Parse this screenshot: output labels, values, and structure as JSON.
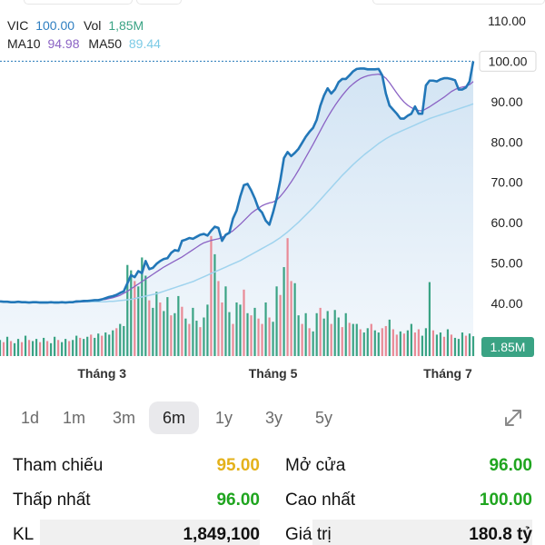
{
  "legend": {
    "symbol": "VIC",
    "price": "100.00",
    "vol_label": "Vol",
    "vol": "1,85M",
    "ma10_label": "MA10",
    "ma10": "94.98",
    "ma50_label": "MA50",
    "ma50": "89.44"
  },
  "colors": {
    "price_line": "#2277b8",
    "area_fill": "#cfe2f3",
    "ma10": "#8b63c4",
    "ma50": "#9fd3ee",
    "vol_up": "#3aa384",
    "vol_down": "#e98a96",
    "green_text": "#1fa51f",
    "yellow_text": "#e4b21b",
    "value_blue": "#2f7fc1",
    "ma50_text": "#7ccbe6"
  },
  "chart_data": {
    "type": "line",
    "title": "",
    "ylim": [
      37,
      110
    ],
    "y_ticks": [
      "110.00",
      "90.00",
      "80.00",
      "70.00",
      "60.00",
      "50.00",
      "40.00"
    ],
    "y_tick_values": [
      110,
      90,
      80,
      70,
      60,
      50,
      40
    ],
    "current_price_label": "100.00",
    "current_price": 100,
    "current_volume_label": "1.85M",
    "x_tick_labels": [
      "Tháng 3",
      "Tháng 5",
      "Tháng 7"
    ],
    "x_tick_index": [
      28,
      75,
      123
    ],
    "grid": false,
    "series": [
      {
        "key": "price",
        "values": [
          40.5,
          40.4,
          40.4,
          40.3,
          40.3,
          40.4,
          40.3,
          40.3,
          40.2,
          40.3,
          40.3,
          40.2,
          40.2,
          40.2,
          40.3,
          40.2,
          40.2,
          40.3,
          40.2,
          40.3,
          40.3,
          40.5,
          40.5,
          40.6,
          40.6,
          40.7,
          40.8,
          40.8,
          41.0,
          41.3,
          41.6,
          41.8,
          42.1,
          42.6,
          43.0,
          45.0,
          47.0,
          46.5,
          48.0,
          47.5,
          50.5,
          48.5,
          48.8,
          49.8,
          50.5,
          51.0,
          51.2,
          52.5,
          53.2,
          53.0,
          55.5,
          55.8,
          56.2,
          56.0,
          56.5,
          57.0,
          57.2,
          56.8,
          58.0,
          59.0,
          58.7,
          55.5,
          57.0,
          57.5,
          61.0,
          63.0,
          66.5,
          69.3,
          69.6,
          68.0,
          66.0,
          63.5,
          62.5,
          60.5,
          59.5,
          62.5,
          66.0,
          70.5,
          76.0,
          77.5,
          76.5,
          77.3,
          78.3,
          79.8,
          81.3,
          82.5,
          83.5,
          85.5,
          89.0,
          91.5,
          93.3,
          92.0,
          93.0,
          94.8,
          95.6,
          95.6,
          96.5,
          97.5,
          98.1,
          98.2,
          98.2,
          98.0,
          98.0,
          98.0,
          98.1,
          96.5,
          92.0,
          89.0,
          88.0,
          87.0,
          85.8,
          85.8,
          86.5,
          87.0,
          88.8,
          87.0,
          87.0,
          94.0,
          95.2,
          95.2,
          95.0,
          95.5,
          95.8,
          95.8,
          95.6,
          95.3,
          93.0,
          93.0,
          93.5,
          95.0,
          100.0
        ],
        "name": ""
      },
      {
        "key": "ma10",
        "values": [
          40.4,
          40.4,
          40.4,
          40.4,
          40.4,
          40.4,
          40.4,
          40.3,
          40.3,
          40.3,
          40.3,
          40.3,
          40.3,
          40.3,
          40.3,
          40.3,
          40.3,
          40.3,
          40.3,
          40.3,
          40.3,
          40.3,
          40.4,
          40.4,
          40.5,
          40.6,
          40.7,
          40.8,
          40.9,
          41.0,
          41.2,
          41.4,
          41.7,
          42.0,
          42.5,
          43.0,
          43.6,
          44.2,
          44.8,
          45.4,
          46.0,
          46.6,
          47.2,
          47.8,
          48.4,
          49.0,
          49.5,
          50.0,
          50.5,
          51.0,
          51.5,
          52.1,
          52.7,
          53.3,
          53.9,
          54.5,
          55.0,
          55.3,
          55.6,
          55.8,
          56.0,
          56.4,
          56.8,
          57.4,
          58.0,
          58.8,
          59.6,
          60.5,
          61.4,
          62.3,
          63.0,
          63.6,
          64.2,
          64.6,
          64.9,
          65.1,
          65.6,
          66.5,
          67.6,
          68.8,
          70.1,
          71.5,
          73.0,
          74.6,
          76.2,
          77.8,
          79.4,
          81.1,
          82.8,
          84.5,
          86.1,
          87.6,
          89.0,
          90.3,
          91.5,
          92.6,
          93.6,
          94.4,
          95.1,
          95.7,
          96.1,
          96.4,
          96.6,
          96.7,
          96.8,
          96.5,
          95.8,
          94.7,
          93.4,
          92.1,
          90.9,
          89.9,
          89.1,
          88.5,
          88.1,
          87.8,
          87.7,
          88.2,
          88.7,
          89.3,
          89.9,
          90.5,
          91.1,
          91.8,
          92.5,
          93.0,
          93.4,
          93.6,
          93.8,
          94.2,
          94.98
        ],
        "name": ""
      },
      {
        "key": "ma50",
        "values": [
          40.4,
          40.4,
          40.4,
          40.4,
          40.4,
          40.4,
          40.4,
          40.4,
          40.4,
          40.4,
          40.4,
          40.4,
          40.4,
          40.4,
          40.4,
          40.4,
          40.4,
          40.4,
          40.4,
          40.4,
          40.4,
          40.4,
          40.4,
          40.4,
          40.4,
          40.4,
          40.4,
          40.4,
          40.4,
          40.4,
          40.5,
          40.5,
          40.6,
          40.7,
          40.8,
          40.9,
          41.0,
          41.2,
          41.4,
          41.6,
          41.8,
          42.0,
          42.2,
          42.4,
          42.7,
          43.0,
          43.3,
          43.6,
          43.9,
          44.2,
          44.5,
          44.8,
          45.1,
          45.4,
          45.8,
          46.2,
          46.6,
          47.0,
          47.4,
          47.8,
          48.2,
          48.6,
          49.0,
          49.4,
          49.8,
          50.2,
          50.6,
          51.1,
          51.6,
          52.1,
          52.6,
          53.1,
          53.6,
          54.1,
          54.6,
          55.1,
          55.7,
          56.3,
          57.0,
          57.7,
          58.5,
          59.3,
          60.1,
          61.0,
          61.9,
          62.8,
          63.7,
          64.7,
          65.7,
          66.7,
          67.7,
          68.7,
          69.7,
          70.7,
          71.7,
          72.6,
          73.5,
          74.4,
          75.2,
          76.0,
          76.8,
          77.5,
          78.2,
          78.9,
          79.6,
          80.2,
          80.8,
          81.3,
          81.8,
          82.2,
          82.6,
          83.0,
          83.4,
          83.8,
          84.2,
          84.6,
          85.0,
          85.4,
          85.8,
          86.1,
          86.4,
          86.7,
          87.0,
          87.3,
          87.6,
          87.9,
          88.2,
          88.5,
          88.8,
          89.1,
          89.44
        ],
        "name": ""
      }
    ],
    "volume": {
      "max": 10,
      "values": [
        1.5,
        1.3,
        1.8,
        1.4,
        1.2,
        1.6,
        1.3,
        1.9,
        1.5,
        1.4,
        1.6,
        1.3,
        1.7,
        1.4,
        1.2,
        1.8,
        1.5,
        1.3,
        1.6,
        1.4,
        1.5,
        1.9,
        1.7,
        1.6,
        1.8,
        2.0,
        1.7,
        2.1,
        1.9,
        2.2,
        2.0,
        2.4,
        2.6,
        3.0,
        2.8,
        8.5,
        8.0,
        7.0,
        6.5,
        9.2,
        7.5,
        5.2,
        4.5,
        6.0,
        5.0,
        4.2,
        5.5,
        3.8,
        4.0,
        5.6,
        4.6,
        3.5,
        3.0,
        4.5,
        3.3,
        2.7,
        3.6,
        4.8,
        11.2,
        9.5,
        7.0,
        5.0,
        6.5,
        4.1,
        3.0,
        5.0,
        4.8,
        6.2,
        4.0,
        3.8,
        4.5,
        3.5,
        3.0,
        5.0,
        3.6,
        3.2,
        6.5,
        5.7,
        8.3,
        11.0,
        7.0,
        6.8,
        3.8,
        3.0,
        4.0,
        2.6,
        2.3,
        4.0,
        4.5,
        3.5,
        4.2,
        3.0,
        4.3,
        3.6,
        2.7,
        4.0,
        3.1,
        3.0,
        3.0,
        2.5,
        2.2,
        2.6,
        3.0,
        2.4,
        2.2,
        2.6,
        2.8,
        3.4,
        2.5,
        2.0,
        2.3,
        2.1,
        2.4,
        3.0,
        2.2,
        2.5,
        1.9,
        2.6,
        6.9,
        2.4,
        2.0,
        2.2,
        1.8,
        2.5,
        2.0,
        1.7,
        1.6,
        2.2,
        1.9,
        2.1,
        1.85
      ],
      "up": [
        true,
        false,
        true,
        false,
        true,
        true,
        false,
        true,
        false,
        true,
        true,
        false,
        true,
        false,
        true,
        true,
        false,
        true,
        true,
        false,
        true,
        true,
        false,
        true,
        true,
        false,
        true,
        true,
        false,
        true,
        true,
        true,
        false,
        true,
        true,
        true,
        true,
        false,
        true,
        true,
        true,
        false,
        true,
        true,
        false,
        true,
        true,
        false,
        true,
        true,
        false,
        true,
        false,
        true,
        true,
        false,
        true,
        true,
        false,
        true,
        false,
        false,
        true,
        true,
        false,
        true,
        true,
        false,
        true,
        false,
        true,
        false,
        false,
        true,
        false,
        true,
        true,
        false,
        true,
        false,
        false,
        true,
        true,
        false,
        true,
        false,
        true,
        true,
        false,
        true,
        true,
        false,
        true,
        true,
        false,
        true,
        false,
        true,
        true,
        false,
        true,
        true,
        false,
        true,
        true,
        false,
        false,
        true,
        false,
        false,
        true,
        false,
        true,
        true,
        false,
        false,
        true,
        true,
        true,
        false,
        true,
        true,
        false,
        true,
        false,
        true,
        true,
        true,
        false,
        true,
        true
      ]
    }
  },
  "ranges": [
    "1d",
    "1m",
    "3m",
    "6m",
    "1y",
    "3y",
    "5y"
  ],
  "active_range": "6m",
  "stats": {
    "ref_label": "Tham chiếu",
    "ref_value": "95.00",
    "open_label": "Mở cửa",
    "open_value": "96.00",
    "low_label": "Thấp nhất",
    "low_value": "96.00",
    "high_label": "Cao nhất",
    "high_value": "100.00",
    "kl_label": "KL",
    "kl_value": "1,849,100",
    "gt_label": "Giá trị",
    "gt_value": "180.8 tỷ"
  }
}
